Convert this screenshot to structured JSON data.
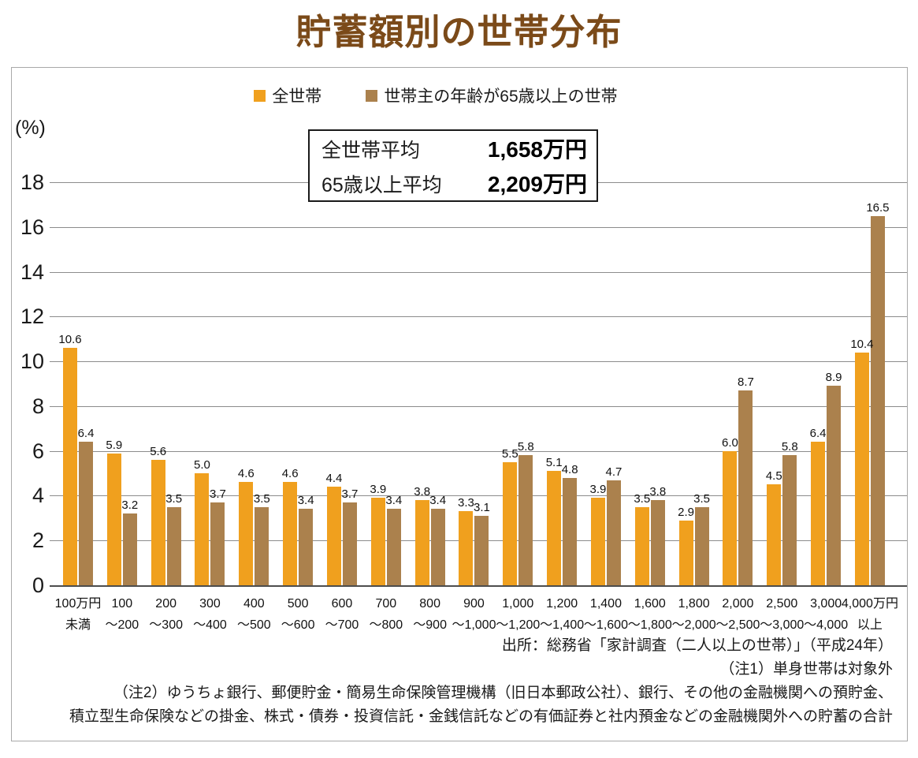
{
  "page": {
    "title": "貯蓄額別の世帯分布"
  },
  "legend": [
    {
      "label": "全世帯",
      "color": "#F0A01E"
    },
    {
      "label": "世帯主の年齢が65歳以上の世帯",
      "color": "#AB814D"
    }
  ],
  "stats_box": {
    "rows": [
      {
        "label": "全世帯平均",
        "value": "1,658万円"
      },
      {
        "label": "65歳以上平均",
        "value": "2,209万円"
      }
    ]
  },
  "chart_data": {
    "type": "bar",
    "title": "貯蓄額別の世帯分布",
    "unit_label": "(%)",
    "xlabel": "",
    "ylabel": "(%)",
    "ylim": [
      0,
      18
    ],
    "ytick_step": 2,
    "grid": true,
    "legend_position": "top",
    "categories": [
      [
        "100万円",
        "未満"
      ],
      [
        "100",
        "～200"
      ],
      [
        "200",
        "～300"
      ],
      [
        "300",
        "～400"
      ],
      [
        "400",
        "～500"
      ],
      [
        "500",
        "～600"
      ],
      [
        "600",
        "～700"
      ],
      [
        "700",
        "～800"
      ],
      [
        "800",
        "～900"
      ],
      [
        "900",
        "～1,000"
      ],
      [
        "1,000",
        "～1,200"
      ],
      [
        "1,200",
        "～1,400"
      ],
      [
        "1,400",
        "～1,600"
      ],
      [
        "1,600",
        "～1,800"
      ],
      [
        "1,800",
        "～2,000"
      ],
      [
        "2,000",
        "～2,500"
      ],
      [
        "2,500",
        "～3,000"
      ],
      [
        "3,000",
        "～4,000"
      ],
      [
        "4,000万円",
        "以上"
      ]
    ],
    "series": [
      {
        "name": "全世帯",
        "color": "#F0A01E",
        "values": [
          10.6,
          5.9,
          5.6,
          5.0,
          4.6,
          4.6,
          4.4,
          3.9,
          3.8,
          3.3,
          5.5,
          5.1,
          3.9,
          3.5,
          2.9,
          6.0,
          4.5,
          6.4,
          10.4
        ]
      },
      {
        "name": "世帯主の年齢が65歳以上の世帯",
        "color": "#AB814D",
        "values": [
          6.4,
          3.2,
          3.5,
          3.7,
          3.5,
          3.4,
          3.7,
          3.4,
          3.4,
          3.1,
          5.8,
          4.8,
          4.7,
          3.8,
          3.5,
          8.7,
          5.8,
          8.9,
          16.5
        ]
      }
    ]
  },
  "notes": {
    "source": "出所：総務省「家計調査（二人以上の世帯）」（平成24年）",
    "note1": "（注1）単身世帯は対象外",
    "note2_line1": "（注2）ゆうちょ銀行、郵便貯金・簡易生命保険管理機構（旧日本郵政公社）、銀行、その他の金融機関への預貯金、",
    "note2_line2": "積立型生命保険などの掛金、株式・債券・投資信託・金銭信託などの有価証券と社内預金などの金融機関外への貯蓄の合計"
  },
  "colors": {
    "title": "#7B4A19",
    "gridline": "#8C8C8C",
    "baseline": "#4D4D4D",
    "panel_border": "#A9A9A9"
  }
}
